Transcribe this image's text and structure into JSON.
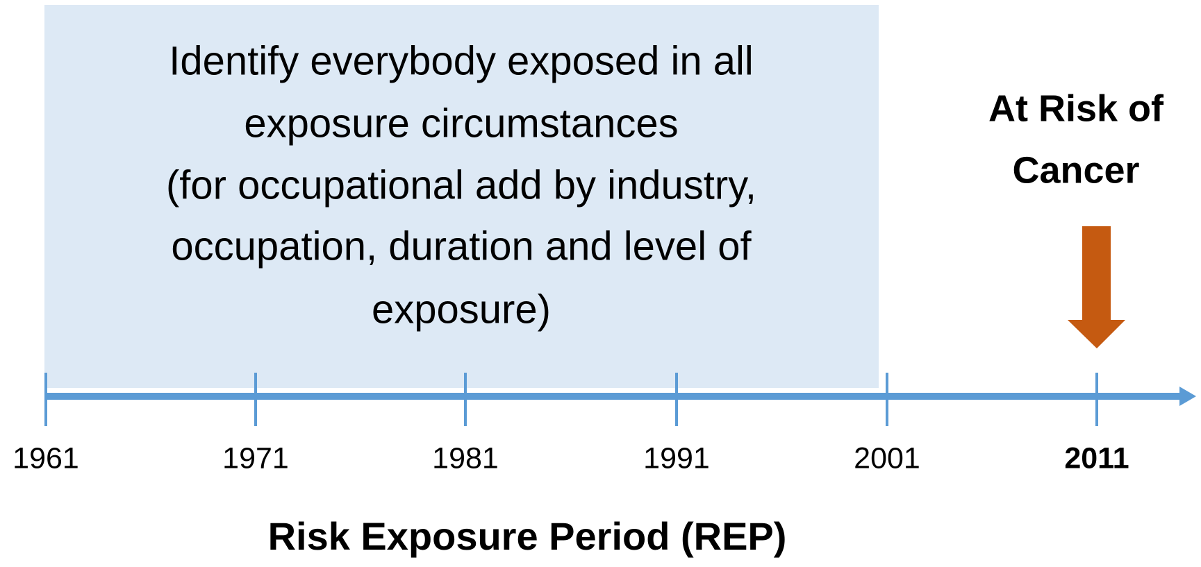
{
  "box": {
    "lines": [
      "Identify everybody exposed in all",
      "exposure circumstances",
      "(for occupational add by industry,",
      "occupation, duration and level of",
      "exposure)"
    ]
  },
  "timeline": {
    "years": [
      "1961",
      "1971",
      "1981",
      "1991",
      "2001",
      "2011"
    ]
  },
  "callout": {
    "lines": [
      "At Risk of",
      "Cancer"
    ]
  },
  "axis_title": "Risk Exposure Period (REP)"
}
